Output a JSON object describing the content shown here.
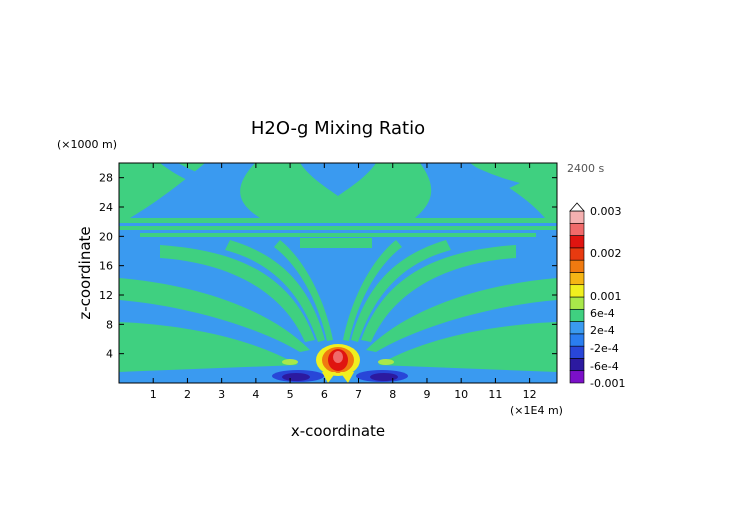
{
  "chart_data": {
    "type": "heatmap",
    "title": "H2O-g Mixing Ratio",
    "xlabel": "x-coordinate",
    "ylabel": "z-coordinate",
    "x_unit": "(×1E4 m)",
    "y_unit": "(×1000 m)",
    "time_label": "2400 s",
    "xlim": [
      0,
      12.8
    ],
    "ylim": [
      0,
      30
    ],
    "x_ticks": [
      "1",
      "2",
      "3",
      "4",
      "5",
      "6",
      "7",
      "8",
      "9",
      "10",
      "11",
      "12"
    ],
    "y_ticks": [
      "4",
      "8",
      "12",
      "16",
      "20",
      "24",
      "28"
    ],
    "colorbar": {
      "labels": [
        "0.003",
        "0.002",
        "0.001",
        "6e-4",
        "2e-4",
        "-2e-4",
        "-6e-4",
        "-0.001"
      ],
      "levels": [
        -0.001,
        -0.0008,
        -0.0006,
        -0.0004,
        -0.0002,
        0.0002,
        0.0004,
        0.0006,
        0.0008,
        0.001,
        0.0015,
        0.002,
        0.0025,
        0.003
      ],
      "colors": [
        "#7b10c8",
        "#2c1aa0",
        "#2846d8",
        "#2a7ef0",
        "#3a9af0",
        "#3fd080",
        "#a8e84a",
        "#f0ef1f",
        "#f5b515",
        "#f07a10",
        "#e83a10",
        "#e01410",
        "#f06a6a",
        "#f5b0b0"
      ]
    },
    "background_value_range": [
      -0.0002,
      0.0002
    ],
    "plume_max_value": 0.003
  }
}
